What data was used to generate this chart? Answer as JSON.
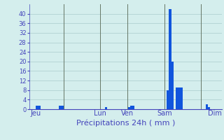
{
  "title": "Précipitations 24h ( mm )",
  "background_color": "#d4eeed",
  "bar_color": "#1155dd",
  "grid_color": "#aacccc",
  "axis_label_color": "#4444bb",
  "vline_color": "#667766",
  "ylim": [
    0,
    44
  ],
  "yticks": [
    0,
    4,
    8,
    12,
    16,
    20,
    24,
    28,
    32,
    36,
    40
  ],
  "num_bars": 84,
  "day_labels": [
    "Jeu",
    "Lun",
    "Ven",
    "Sam",
    "Dim"
  ],
  "day_tick_positions": [
    3,
    31,
    43,
    59,
    81
  ],
  "vline_positions": [
    15,
    31,
    43,
    59,
    75
  ],
  "bar_values": [
    0,
    0,
    0,
    1.5,
    1.5,
    0,
    0,
    0,
    0,
    0,
    0,
    0,
    0,
    1.5,
    1.5,
    0,
    0,
    0,
    0,
    0,
    0,
    0,
    0,
    0,
    0,
    0,
    0,
    0,
    0,
    0,
    0,
    0,
    0,
    1,
    0,
    0,
    0,
    0,
    0,
    0,
    0,
    0,
    0,
    1,
    1.5,
    1.5,
    0,
    0,
    0,
    0,
    0,
    0,
    0,
    0,
    0,
    0,
    0,
    0,
    0,
    0,
    8,
    42,
    20,
    0,
    9,
    9,
    9,
    0,
    0,
    0,
    0,
    0,
    0,
    0,
    0,
    0,
    0,
    2,
    1,
    0,
    0,
    0,
    0,
    0
  ]
}
